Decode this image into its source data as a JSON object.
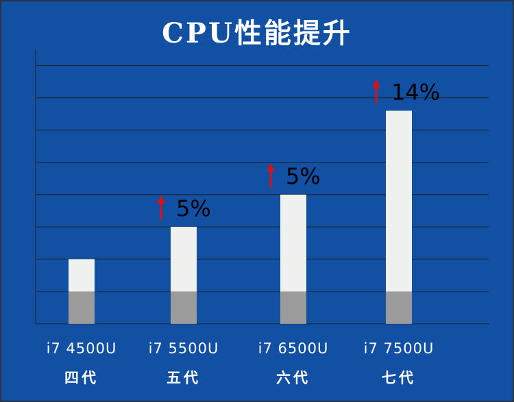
{
  "chart_data": {
    "type": "bar",
    "title": "CPU性能提升",
    "categories": [
      "i7 4500U",
      "i7 5500U",
      "i7 6500U",
      "i7 7500U"
    ],
    "generations": [
      "四代",
      "五代",
      "六代",
      "七代"
    ],
    "values": [
      2.0,
      3.0,
      4.0,
      6.6
    ],
    "base_values": [
      1.0,
      1.0,
      1.0,
      1.0
    ],
    "increase_labels": [
      "",
      "5%",
      "5%",
      "14%"
    ],
    "ylim": [
      0,
      8.5
    ],
    "grid": true,
    "colors": {
      "background": "#1150a3",
      "bar_top": "#eff1ee",
      "bar_base": "#9b9b9b",
      "gridline": "#1f2a38",
      "arrow": "#d91018"
    }
  }
}
